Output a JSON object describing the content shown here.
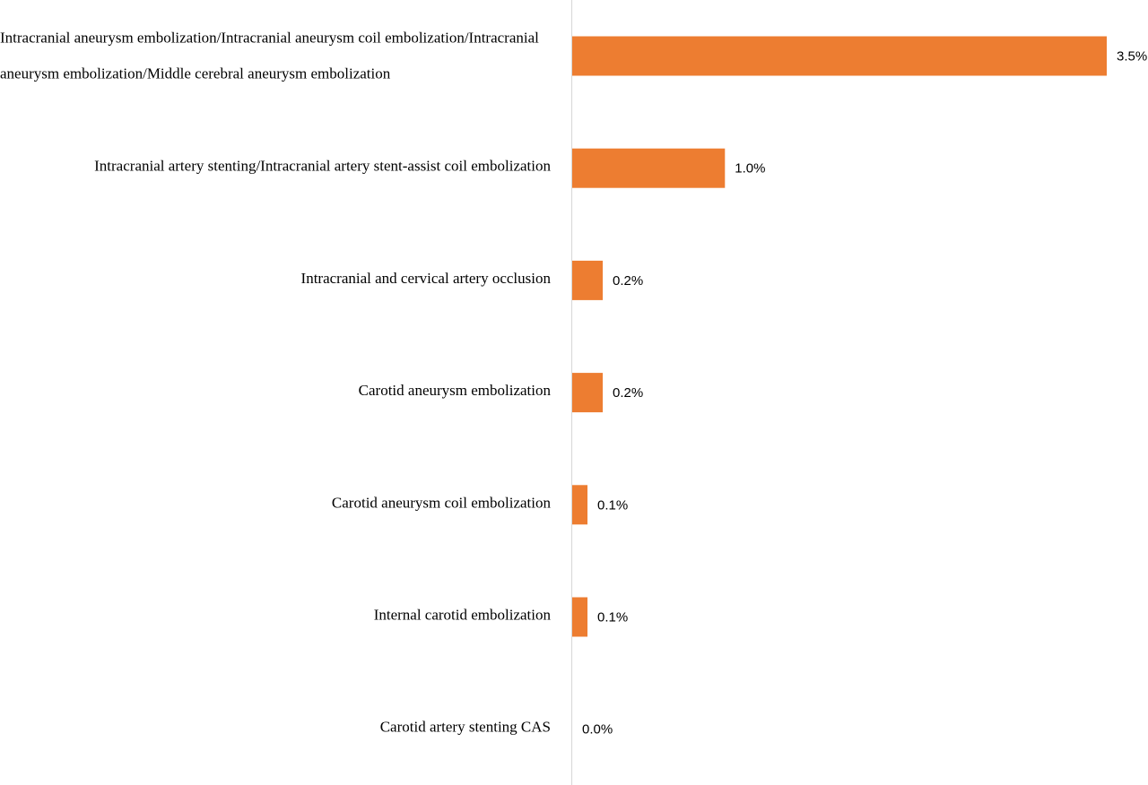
{
  "chart_data": {
    "type": "bar",
    "orientation": "horizontal",
    "categories": [
      "Intracranial aneurysm embolization/Intracranial aneurysm coil embolization/Intracranial aneurysm embolization/Middle cerebral aneurysm embolization",
      "Intracranial artery stenting/Intracranial artery stent-assist coil embolization",
      "Intracranial and cervical artery occlusion",
      "Carotid aneurysm embolization",
      "Carotid aneurysm coil embolization",
      "Internal carotid embolization",
      "Carotid artery stenting CAS"
    ],
    "category_lines": [
      [
        "Intracranial aneurysm embolization/Intracranial aneurysm coil embolization/Intracranial",
        "aneurysm embolization/Middle cerebral aneurysm embolization"
      ],
      [
        "Intracranial artery stenting/Intracranial artery stent-assist coil embolization"
      ],
      [
        "Intracranial and cervical artery occlusion"
      ],
      [
        "Carotid aneurysm embolization"
      ],
      [
        "Carotid aneurysm coil embolization"
      ],
      [
        "Internal carotid embolization"
      ],
      [
        "Carotid artery stenting CAS"
      ]
    ],
    "values": [
      3.5,
      1.0,
      0.2,
      0.2,
      0.1,
      0.1,
      0.0
    ],
    "value_labels": [
      "3.5%",
      "1.0%",
      "0.2%",
      "0.2%",
      "0.1%",
      "0.1%",
      "0.0%"
    ],
    "xlim": [
      0,
      3.5
    ],
    "grid": false,
    "legend": "none",
    "title": "",
    "xlabel": "",
    "ylabel": "",
    "colors": {
      "bar": "#ed7d31",
      "axis": "#d9d9d9",
      "text": "#000000"
    }
  }
}
